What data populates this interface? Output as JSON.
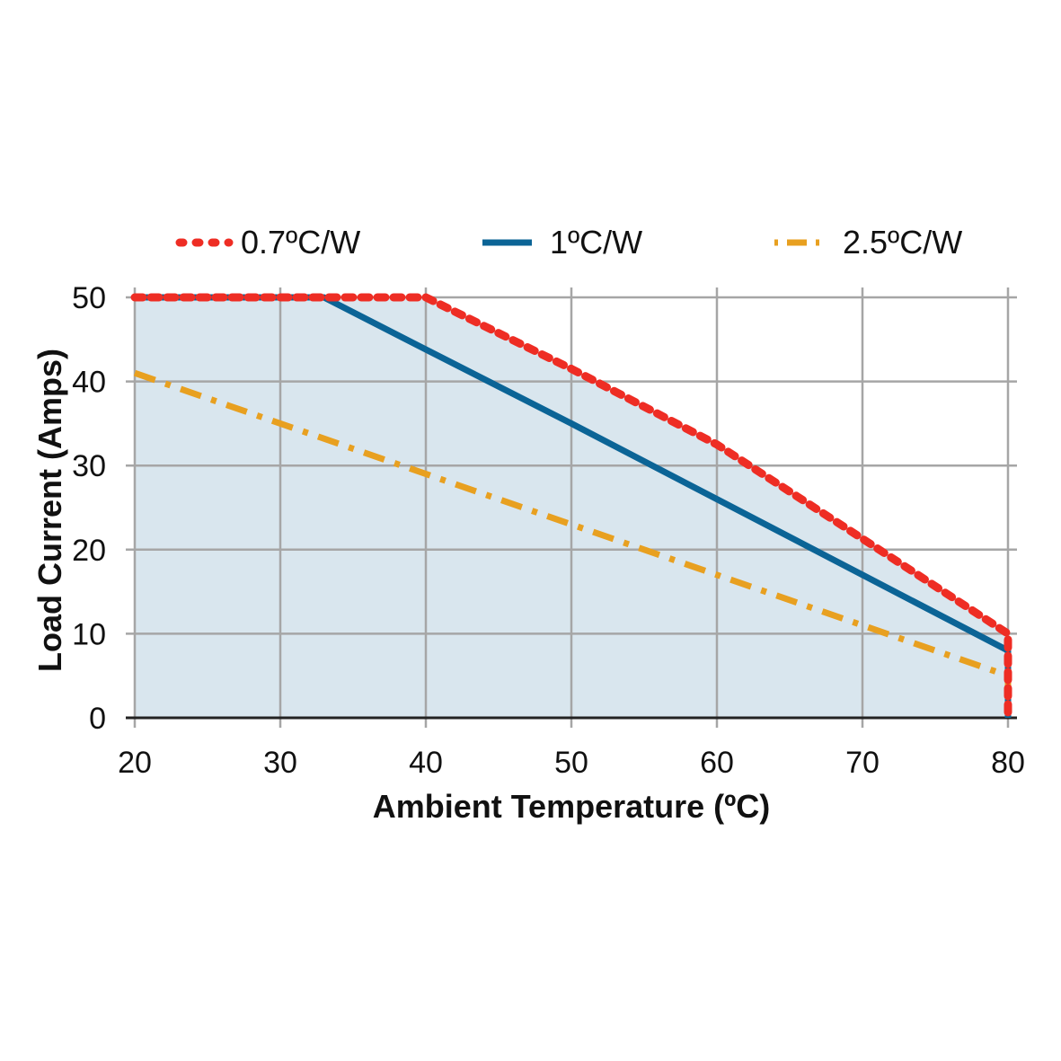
{
  "chart_data": {
    "type": "line",
    "title": "",
    "xlabel": "Ambient Temperature (ºC)",
    "ylabel": "Load Current (Amps)",
    "xlim": [
      20,
      80
    ],
    "ylim": [
      0,
      50
    ],
    "xticks": [
      "20",
      "30",
      "40",
      "50",
      "60",
      "70",
      "80"
    ],
    "yticks": [
      "0",
      "10",
      "20",
      "30",
      "40",
      "50"
    ],
    "grid": true,
    "legend_position": "top",
    "fill_under": "0.7ºC/W",
    "fill_color": "#d9e6ee",
    "series": [
      {
        "name": "0.7ºC/W",
        "style": "dotted",
        "color": "#ee2d24",
        "x": [
          20,
          40,
          50,
          60,
          70,
          80,
          80
        ],
        "y": [
          50,
          50,
          41.5,
          32.5,
          21.3,
          10,
          0
        ]
      },
      {
        "name": "1ºC/W",
        "style": "solid",
        "color": "#0b6496",
        "x": [
          20,
          33,
          40,
          50,
          60,
          70,
          80,
          80
        ],
        "y": [
          50,
          50,
          43.8,
          35,
          26,
          17,
          8,
          0
        ]
      },
      {
        "name": "2.5ºC/W",
        "style": "dash-dot",
        "color": "#e8a020",
        "x": [
          20,
          80,
          80
        ],
        "y": [
          41,
          5,
          0
        ]
      }
    ]
  }
}
